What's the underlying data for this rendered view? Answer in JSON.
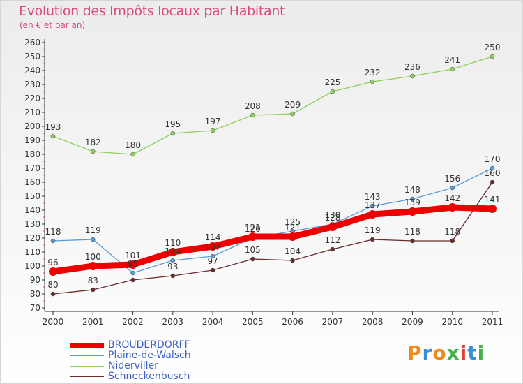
{
  "title": "Evolution des Impôts locaux par Habitant",
  "subtitle": "(en € et par an)",
  "logo": {
    "text": "Proxiti",
    "colors": [
      "#f08a1c",
      "#3a8fd6",
      "#f08a1c",
      "#46b04a",
      "#e23c3c",
      "#3a8fd6",
      "#46b04a"
    ]
  },
  "chart_data": {
    "type": "line",
    "title": "Evolution des Impôts locaux par Habitant",
    "subtitle": "(en € et par an)",
    "xlabel": "",
    "ylabel": "",
    "ylim": [
      70,
      260
    ],
    "yticks": [
      70,
      80,
      90,
      100,
      110,
      120,
      130,
      140,
      150,
      160,
      170,
      180,
      190,
      200,
      210,
      220,
      230,
      240,
      250,
      260
    ],
    "grid": false,
    "legend": "bottom-left",
    "x": [
      "2000",
      "2001",
      "2002",
      "2003",
      "2004",
      "2005",
      "2006",
      "2007",
      "2008",
      "2009",
      "2010",
      "2011"
    ],
    "series": [
      {
        "name": "BROUDERDORFF",
        "color": "#ee0000",
        "values": [
          96,
          100,
          101,
          110,
          114,
          121,
          121,
          128,
          137,
          139,
          142,
          141
        ],
        "labels": [
          "96",
          "100",
          "101",
          "110",
          "114",
          "121",
          "121",
          "128",
          "137",
          "139",
          "142",
          "141"
        ]
      },
      {
        "name": "Plaine-de-Walsch",
        "color": "#5b9bd5",
        "values": [
          118,
          119,
          95,
          104,
          107,
          120,
          125,
          130,
          143,
          148,
          156,
          170
        ],
        "labels": [
          "118",
          "119",
          "95",
          "104",
          "107",
          "120",
          "125",
          "130",
          "143",
          "148",
          "156",
          "170"
        ]
      },
      {
        "name": "Niderviller",
        "color": "#8fd05a",
        "values": [
          193,
          182,
          180,
          195,
          197,
          208,
          209,
          225,
          232,
          236,
          241,
          250
        ],
        "labels": [
          "193",
          "182",
          "180",
          "195",
          "197",
          "208",
          "209",
          "225",
          "232",
          "236",
          "241",
          "250"
        ]
      },
      {
        "name": "Schneckenbusch",
        "color": "#6b2a2a",
        "values": [
          80,
          83,
          90,
          93,
          97,
          105,
          104,
          112,
          119,
          118,
          118,
          160
        ],
        "labels": [
          "80",
          "83",
          "",
          "93",
          "97",
          "105",
          "104",
          "112",
          "119",
          "118",
          "118",
          "160"
        ]
      }
    ]
  }
}
